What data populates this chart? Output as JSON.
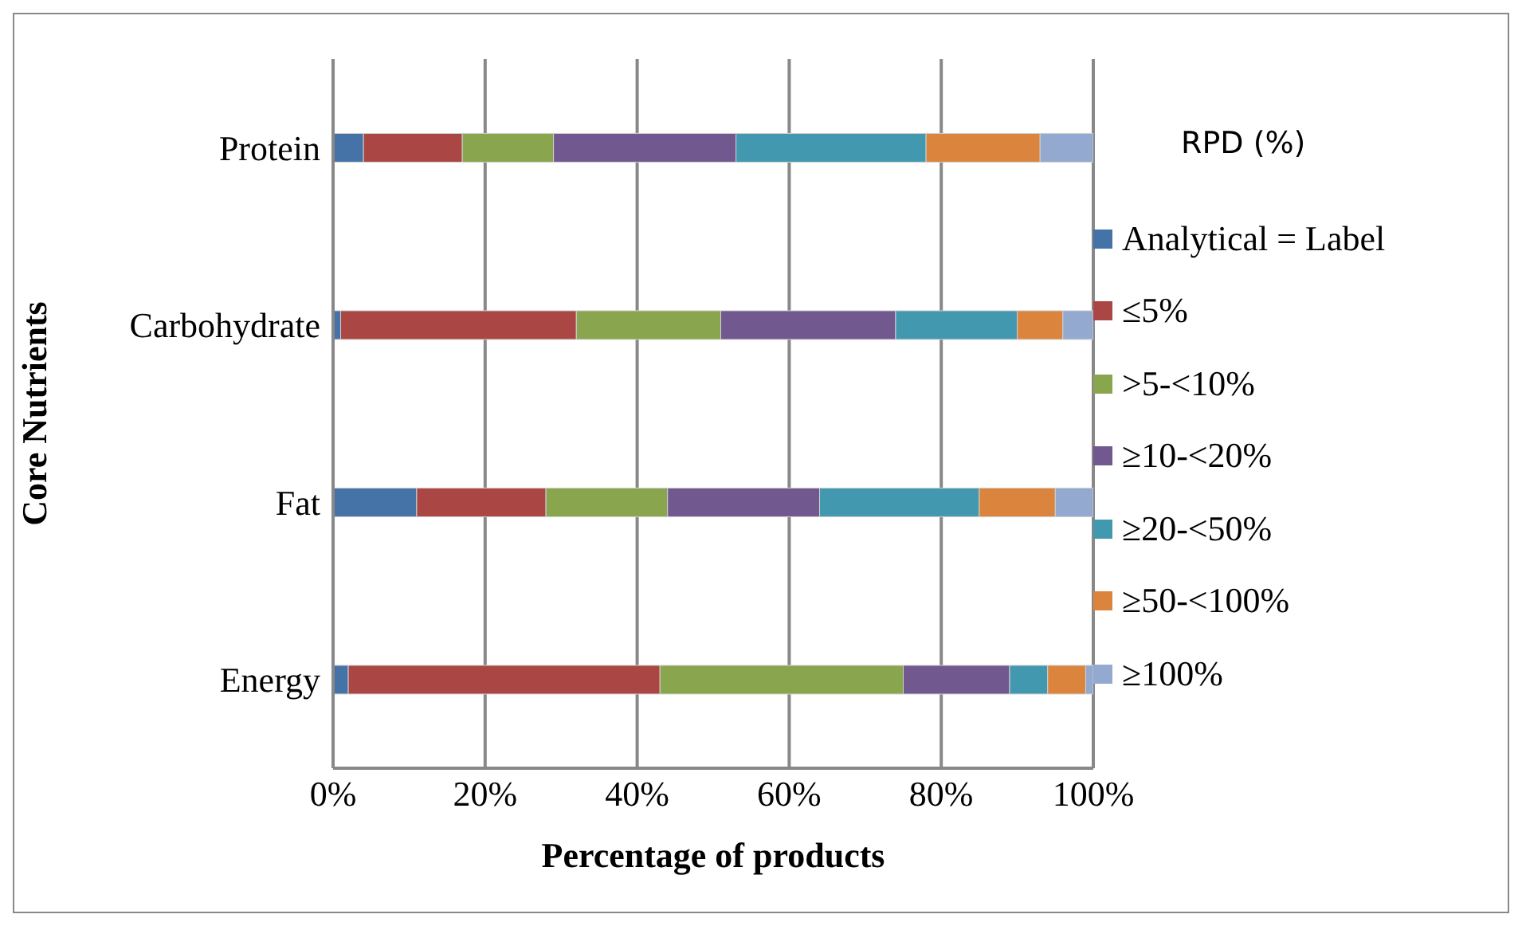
{
  "chart_data": {
    "type": "bar",
    "orientation": "horizontal",
    "stacked": true,
    "xlabel": "Percentage of products",
    "ylabel": "Core Nutrients",
    "legend_title": "RPD (%)",
    "legend": "right",
    "grid": "x",
    "categories": [
      "Protein",
      "Carbohydrate",
      "Fat",
      "Energy"
    ],
    "xlim": [
      0,
      100
    ],
    "xticks": [
      {
        "value": 0,
        "label": "0%"
      },
      {
        "value": 20,
        "label": "20%"
      },
      {
        "value": 40,
        "label": "40%"
      },
      {
        "value": 60,
        "label": "60%"
      },
      {
        "value": 80,
        "label": "80%"
      },
      {
        "value": 100,
        "label": "100%"
      }
    ],
    "series": [
      {
        "name": "Analytical = Label",
        "color": "#4572a7",
        "values": [
          4,
          1,
          11,
          2
        ]
      },
      {
        "name": "≤5%",
        "color": "#aa4643",
        "values": [
          13,
          31,
          17,
          41
        ]
      },
      {
        "name": ">5-<10%",
        "color": "#89a54e",
        "values": [
          12,
          19,
          16,
          32
        ]
      },
      {
        "name": "≥10-<20%",
        "color": "#71588f",
        "values": [
          24,
          23,
          20,
          14
        ]
      },
      {
        "name": "≥20-<50%",
        "color": "#4198af",
        "values": [
          25,
          16,
          21,
          5
        ]
      },
      {
        "name": "≥50-<100%",
        "color": "#db843d",
        "values": [
          15,
          6,
          10,
          5
        ]
      },
      {
        "name": "≥100%",
        "color": "#93a9cf",
        "values": [
          7,
          4,
          5,
          1
        ]
      }
    ]
  }
}
